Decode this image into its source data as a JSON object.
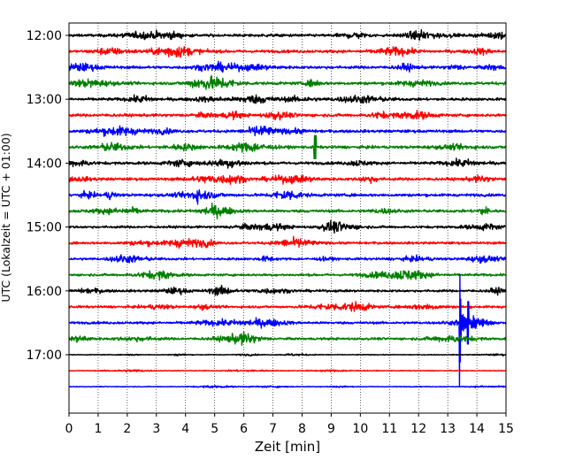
{
  "chart_data": {
    "type": "line",
    "title": "",
    "xlabel": "Zeit  [min]",
    "ylabel": "UTC (Lokalzeit = UTC + 01:00)",
    "xlim": [
      0,
      15
    ],
    "x_ticks": [
      "0",
      "1",
      "2",
      "3",
      "4",
      "5",
      "6",
      "7",
      "8",
      "9",
      "10",
      "11",
      "12",
      "13",
      "14",
      "15"
    ],
    "y_tick_labels": [
      "12:00",
      "13:00",
      "14:00",
      "15:00",
      "16:00",
      "17:00"
    ],
    "grid": "vertical-dotted",
    "trace_interval_minutes": 15,
    "trace_start": "12:00",
    "trace_count": 23,
    "trace_colors": [
      "#000000",
      "#ff0000",
      "#0000ff",
      "#008000"
    ],
    "events": [
      {
        "trace_start": "13:45",
        "minute": 8.45,
        "description": "single spike",
        "color": "#008000"
      },
      {
        "trace_start": "16:30",
        "minute": 13.4,
        "description": "earthquake signal",
        "color": "#0000ff"
      }
    ]
  }
}
